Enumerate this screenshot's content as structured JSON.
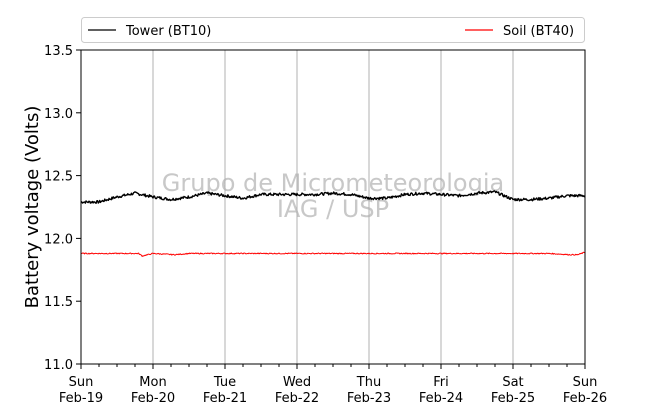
{
  "chart_data": {
    "type": "line",
    "ylabel": "Battery voltage (Volts)",
    "ylim": [
      11.0,
      13.5
    ],
    "y_ticks": [
      "11.0",
      "11.5",
      "12.0",
      "12.5",
      "13.0",
      "13.5"
    ],
    "x_range_days": [
      0,
      7
    ],
    "x_ticks": [
      {
        "day": "Sun",
        "date": "Feb-19"
      },
      {
        "day": "Mon",
        "date": "Feb-20"
      },
      {
        "day": "Tue",
        "date": "Feb-21"
      },
      {
        "day": "Wed",
        "date": "Feb-22"
      },
      {
        "day": "Thu",
        "date": "Feb-23"
      },
      {
        "day": "Fri",
        "date": "Feb-24"
      },
      {
        "day": "Sat",
        "date": "Feb-25"
      },
      {
        "day": "Sun",
        "date": "Feb-26"
      }
    ],
    "grid": "vertical-only",
    "legend_position": "top",
    "watermark": [
      "Grupo de Micrometeorologia",
      "IAG / USP"
    ],
    "series": [
      {
        "name": "Tower (BT10)",
        "color": "#000000",
        "x": [
          0.0,
          0.25,
          0.5,
          0.75,
          1.0,
          1.25,
          1.5,
          1.75,
          2.0,
          2.25,
          2.5,
          2.75,
          3.0,
          3.25,
          3.5,
          3.75,
          4.0,
          4.25,
          4.5,
          4.75,
          5.0,
          5.25,
          5.5,
          5.75,
          6.0,
          6.25,
          6.5,
          6.75,
          7.0
        ],
        "values": [
          12.29,
          12.29,
          12.33,
          12.36,
          12.33,
          12.31,
          12.33,
          12.36,
          12.34,
          12.32,
          12.35,
          12.35,
          12.35,
          12.35,
          12.36,
          12.35,
          12.32,
          12.32,
          12.35,
          12.36,
          12.35,
          12.34,
          12.36,
          12.37,
          12.31,
          12.31,
          12.32,
          12.34,
          12.34
        ]
      },
      {
        "name": "Soil (BT40)",
        "color": "#ff0000",
        "x": [
          0.0,
          0.5,
          0.8,
          0.85,
          1.0,
          1.3,
          1.5,
          2.0,
          2.5,
          3.0,
          3.5,
          4.0,
          4.5,
          5.0,
          5.5,
          6.0,
          6.5,
          6.8,
          6.9,
          7.0
        ],
        "values": [
          11.88,
          11.88,
          11.88,
          11.86,
          11.88,
          11.87,
          11.88,
          11.88,
          11.88,
          11.88,
          11.88,
          11.88,
          11.88,
          11.88,
          11.88,
          11.88,
          11.88,
          11.87,
          11.87,
          11.89
        ]
      }
    ]
  }
}
